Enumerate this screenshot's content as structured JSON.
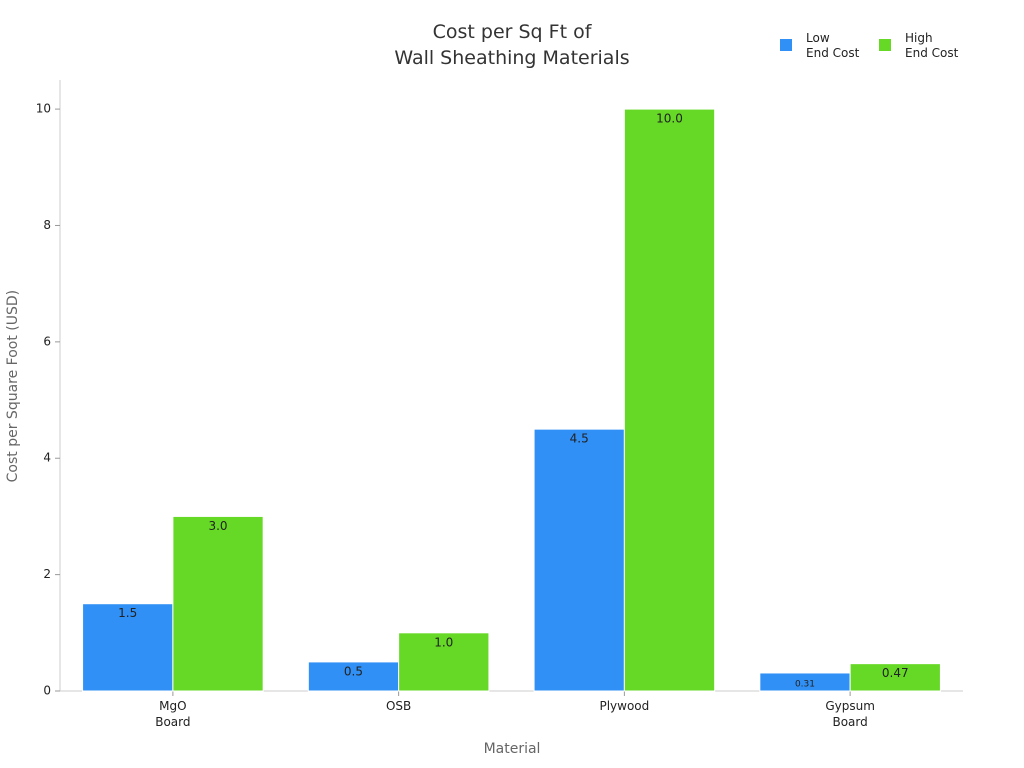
{
  "chart_data": {
    "type": "bar",
    "title": "Cost per Sq Ft of\nWall Sheathing Materials",
    "x_label": "Material",
    "y_label": "Cost per Square Foot (USD)",
    "categories": [
      "MgO\nBoard",
      "OSB",
      "Plywood",
      "Gypsum\nBoard"
    ],
    "series": [
      {
        "name": "Low\nEnd Cost",
        "color": "#3090f5",
        "values": [
          1.5,
          0.5,
          4.5,
          0.31
        ],
        "value_labels": [
          "1.5",
          "0.5",
          "4.5",
          "0.31"
        ]
      },
      {
        "name": "High\nEnd Cost",
        "color": "#66d926",
        "values": [
          3,
          1,
          10,
          0.47
        ],
        "value_labels": [
          "3.0",
          "1.0",
          "10.0",
          "0.47"
        ]
      }
    ],
    "ylim": [
      0,
      10.5
    ],
    "yticks": [
      0,
      2,
      4,
      6,
      8,
      10
    ],
    "grid": false,
    "legend": "top-right"
  }
}
